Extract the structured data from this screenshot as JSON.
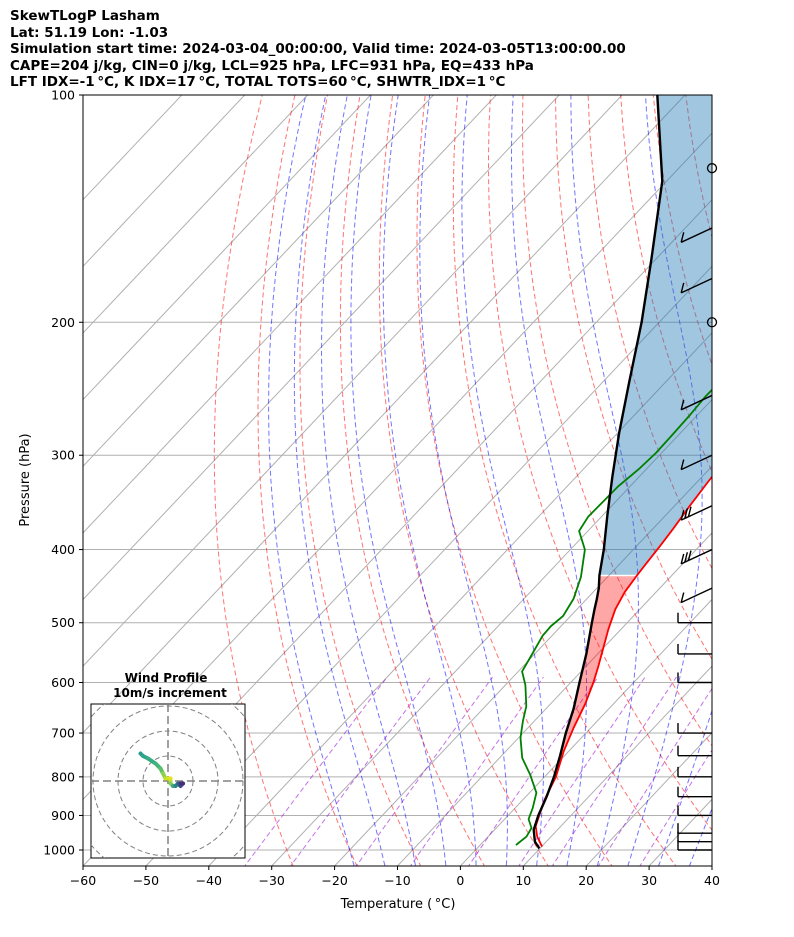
{
  "header": {
    "lines": [
      "SkewTLogP Lasham",
      "Lat: 51.19   Lon: -1.03",
      "Simulation start time: 2024-03-04_00:00:00, Valid time: 2024-03-05T13:00:00.00",
      "CAPE=204 j/kg, CIN=0 j/kg, LCL=925 hPa, LFC=931 hPa, EQ=433 hPa",
      "LFT IDX=-1 °C, K IDX=17 °C, TOTAL TOTS=60 °C, SHWTR_IDX=1 °C"
    ]
  },
  "colors": {
    "temperature": "#ff0000",
    "dewpoint": "#008000",
    "parcel": "#000000",
    "cape_fill": "#1f77b4",
    "cin_fill": "#ff0000",
    "dry_adiabat": "#ff0000",
    "moist_adiabat": "#0000ff",
    "mixing_ratio": "#9400d3",
    "isotherm": "#808080",
    "grid": "#b0b0b0"
  },
  "chart_data": {
    "type": "line",
    "subtype": "skew-t log-p",
    "xlabel": "Temperature ( °C)",
    "ylabel": "Pressure (hPa)",
    "xlim": [
      -60,
      40
    ],
    "ylim": [
      1050,
      100
    ],
    "yscale": "log",
    "xticks": [
      -60,
      -50,
      -40,
      -30,
      -20,
      -10,
      0,
      10,
      20,
      30,
      40
    ],
    "yticks": [
      100,
      200,
      300,
      400,
      500,
      600,
      700,
      800,
      900,
      1000
    ],
    "grid": true,
    "series": [
      {
        "kind": "temperature",
        "points": [
          [
            10.1,
            990
          ],
          [
            7.8,
            960
          ],
          [
            6.0,
            930
          ],
          [
            3.5,
            860
          ],
          [
            1.8,
            800
          ],
          [
            -0.8,
            740
          ],
          [
            -2.7,
            690
          ],
          [
            -4.5,
            640
          ],
          [
            -6.4,
            600
          ],
          [
            -8.1,
            570
          ],
          [
            -10.0,
            540
          ],
          [
            -12.0,
            510
          ],
          [
            -13.9,
            480
          ],
          [
            -15.0,
            455
          ],
          [
            -15.5,
            435
          ],
          [
            -15.8,
            420
          ],
          [
            -16.3,
            395
          ],
          [
            -16.8,
            375
          ],
          [
            -17.6,
            350
          ],
          [
            -18.3,
            325
          ],
          [
            -18.9,
            300
          ],
          [
            -19.4,
            280
          ],
          [
            -19.6,
            265
          ],
          [
            -20.0,
            250
          ],
          [
            -20.2,
            237
          ],
          [
            -19.7,
            224
          ],
          [
            -17.9,
            212
          ],
          [
            -15.6,
            200
          ],
          [
            -14.5,
            191
          ],
          [
            -13.0,
            182
          ],
          [
            -11.5,
            172
          ],
          [
            -10.1,
            164
          ],
          [
            -8.4,
            156
          ],
          [
            -6.0,
            147
          ],
          [
            -4.8,
            143
          ],
          [
            -4.6,
            138
          ],
          [
            -4.3,
            133
          ],
          [
            -4.0,
            128
          ],
          [
            -3.6,
            122
          ],
          [
            -3.1,
            116
          ],
          [
            -2.8,
            111
          ],
          [
            -2.6,
            106
          ],
          [
            -2.3,
            100
          ]
        ]
      },
      {
        "kind": "dewpoint",
        "points": [
          [
            5.7,
            985
          ],
          [
            6.1,
            960
          ],
          [
            5.6,
            935
          ],
          [
            3.8,
            910
          ],
          [
            2.8,
            880
          ],
          [
            1.1,
            840
          ],
          [
            -2.6,
            795
          ],
          [
            -6.4,
            755
          ],
          [
            -9.7,
            710
          ],
          [
            -11.8,
            675
          ],
          [
            -13.5,
            645
          ],
          [
            -16.8,
            605
          ],
          [
            -19.4,
            580
          ],
          [
            -20.4,
            550
          ],
          [
            -21.5,
            520
          ],
          [
            -21.6,
            505
          ],
          [
            -21.2,
            490
          ],
          [
            -22.1,
            465
          ],
          [
            -24.2,
            435
          ],
          [
            -27.7,
            400
          ],
          [
            -31.4,
            378
          ],
          [
            -32.1,
            362
          ],
          [
            -32.0,
            345
          ],
          [
            -31.9,
            330
          ],
          [
            -31.2,
            313
          ],
          [
            -30.9,
            298
          ],
          [
            -31.0,
            282
          ],
          [
            -31.2,
            265
          ],
          [
            -31.5,
            251
          ],
          [
            -31.4,
            237
          ],
          [
            -31.8,
            224
          ],
          [
            -33.3,
            212
          ],
          [
            -35.5,
            201
          ],
          [
            -37.1,
            192
          ],
          [
            -36.0,
            186
          ],
          [
            -32.2,
            174
          ],
          [
            -28.4,
            162
          ],
          [
            -25.4,
            152
          ],
          [
            -23.7,
            146
          ],
          [
            -21.9,
            140
          ],
          [
            -18.7,
            130
          ],
          [
            -15.8,
            121
          ],
          [
            -12.9,
            113
          ],
          [
            -11.0,
            108
          ],
          [
            -9.2,
            104
          ],
          [
            -7.9,
            100
          ]
        ]
      },
      {
        "kind": "parcel",
        "points": [
          [
            9.9,
            995
          ],
          [
            8.2,
            975
          ],
          [
            6.2,
            940
          ],
          [
            4.8,
            900
          ],
          [
            3.3,
            850
          ],
          [
            1.5,
            800
          ],
          [
            -0.7,
            750
          ],
          [
            -3.2,
            700
          ],
          [
            -5.6,
            650
          ],
          [
            -8.6,
            600
          ],
          [
            -11.8,
            550
          ],
          [
            -15.6,
            500
          ],
          [
            -17.2,
            480
          ],
          [
            -18.3,
            466
          ],
          [
            -19.7,
            450
          ],
          [
            -21.5,
            433
          ],
          [
            -24.7,
            400
          ],
          [
            -29.3,
            360
          ],
          [
            -34.3,
            320
          ],
          [
            -39.8,
            280
          ],
          [
            -45.8,
            240
          ],
          [
            -52.8,
            200
          ],
          [
            -60.7,
            165
          ],
          [
            -70.7,
            130
          ],
          [
            -84.4,
            100
          ]
        ]
      }
    ],
    "wind_barbs": {
      "levels": [
        {
          "p": 125,
          "calm": true
        },
        {
          "p": 150,
          "barbs": 1
        },
        {
          "p": 175,
          "barbs": 1
        },
        {
          "p": 200,
          "calm": true
        },
        {
          "p": 250,
          "barbs": 1
        },
        {
          "p": 300,
          "barbs": 1
        },
        {
          "p": 350,
          "barbs": 3
        },
        {
          "p": 400,
          "barbs": 3
        },
        {
          "p": 450,
          "barbs": 1
        },
        {
          "p": 500,
          "barbs": 1
        },
        {
          "p": 550,
          "barbs": 1
        },
        {
          "p": 600,
          "barbs": 1
        },
        {
          "p": 700,
          "barbs": 1
        },
        {
          "p": 750,
          "barbs": 1
        },
        {
          "p": 800,
          "barbs": 1
        },
        {
          "p": 850,
          "barbs": 1
        },
        {
          "p": 900,
          "barbs": 1
        },
        {
          "p": 950,
          "barbs": 1
        },
        {
          "p": 975,
          "barbs": 1
        },
        {
          "p": 1000,
          "barbs": 1
        }
      ]
    },
    "hodograph": {
      "title": "Wind Profile",
      "subtitle": "10m/s increment",
      "ring_increment_ms": 10,
      "points": [
        [
          -11,
          11
        ],
        [
          -10,
          10
        ],
        [
          -8,
          9
        ],
        [
          -5,
          7
        ],
        [
          -3,
          5
        ],
        [
          -2,
          3
        ],
        [
          -1,
          1
        ],
        [
          0,
          1
        ],
        [
          1,
          1
        ],
        [
          1,
          0
        ],
        [
          1,
          -1
        ],
        [
          2,
          -2
        ],
        [
          3,
          -2
        ],
        [
          4,
          -1
        ],
        [
          5,
          -2
        ],
        [
          6,
          -1
        ],
        [
          5,
          -1
        ]
      ]
    }
  }
}
